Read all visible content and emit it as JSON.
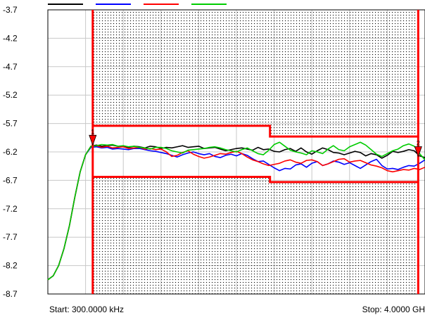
{
  "chart_data": {
    "type": "line",
    "title": "",
    "xlabel": "",
    "ylabel": "",
    "x_start_label": "Start: 300.0000 kHz",
    "x_stop_label": "Stop: 4.0000 GH",
    "ylim": [
      -8.7,
      -3.7
    ],
    "y_ticks": [
      "-3.7",
      "-4.2",
      "-4.7",
      "-5.2",
      "-5.7",
      "-6.2",
      "-6.7",
      "-7.2",
      "-7.7",
      "-8.2",
      "-8.7"
    ],
    "grid": true,
    "legend_position": "top-left",
    "series": [
      {
        "color": "#000000",
        "values": [
          -8.45,
          -8.38,
          -8.2,
          -7.9,
          -7.5,
          -7.0,
          -6.55,
          -6.25,
          -6.1,
          -6.08,
          -6.1,
          -6.09,
          -6.08,
          -6.1,
          -6.11,
          -6.12,
          -6.1,
          -6.11,
          -6.13,
          -6.1,
          -6.11,
          -6.14,
          -6.12,
          -6.13,
          -6.11,
          -6.09,
          -6.12,
          -6.11,
          -6.1,
          -6.14,
          -6.13,
          -6.12,
          -6.15,
          -6.18,
          -6.16,
          -6.14,
          -6.13,
          -6.15,
          -6.17,
          -6.12,
          -6.16,
          -6.15,
          -6.19,
          -6.2,
          -6.16,
          -6.14,
          -6.19,
          -6.13,
          -6.2,
          -6.24,
          -6.18,
          -6.13,
          -6.16,
          -6.21,
          -6.22,
          -6.25,
          -6.22,
          -6.19,
          -6.21,
          -6.27,
          -6.23,
          -6.25,
          -6.31,
          -6.26,
          -6.19,
          -6.21,
          -6.19,
          -6.16,
          -6.18,
          -6.27,
          -6.3
        ]
      },
      {
        "color": "#0000ff",
        "values": [
          -8.45,
          -8.38,
          -8.2,
          -7.9,
          -7.5,
          -7.0,
          -6.55,
          -6.25,
          -6.12,
          -6.11,
          -6.13,
          -6.12,
          -6.15,
          -6.14,
          -6.15,
          -6.16,
          -6.14,
          -6.14,
          -6.16,
          -6.18,
          -6.19,
          -6.21,
          -6.23,
          -6.26,
          -6.29,
          -6.25,
          -6.22,
          -6.2,
          -6.23,
          -6.25,
          -6.23,
          -6.28,
          -6.3,
          -6.26,
          -6.24,
          -6.27,
          -6.23,
          -6.26,
          -6.32,
          -6.37,
          -6.36,
          -6.42,
          -6.48,
          -6.53,
          -6.49,
          -6.5,
          -6.43,
          -6.41,
          -6.47,
          -6.4,
          -6.37,
          -6.44,
          -6.41,
          -6.36,
          -6.38,
          -6.42,
          -6.39,
          -6.44,
          -6.49,
          -6.43,
          -6.37,
          -6.33,
          -6.44,
          -6.5,
          -6.49,
          -6.51,
          -6.47,
          -6.44,
          -6.45,
          -6.4,
          -6.34
        ]
      },
      {
        "color": "#ff0000",
        "values": [
          -8.45,
          -8.38,
          -8.2,
          -7.9,
          -7.5,
          -7.0,
          -6.55,
          -6.25,
          -6.1,
          -6.09,
          -6.12,
          -6.1,
          -6.13,
          -6.12,
          -6.11,
          -6.14,
          -6.13,
          -6.12,
          -6.15,
          -6.14,
          -6.16,
          -6.15,
          -6.2,
          -6.28,
          -6.26,
          -6.21,
          -6.18,
          -6.24,
          -6.28,
          -6.31,
          -6.29,
          -6.26,
          -6.23,
          -6.24,
          -6.21,
          -6.19,
          -6.23,
          -6.29,
          -6.34,
          -6.37,
          -6.41,
          -6.44,
          -6.42,
          -6.4,
          -6.36,
          -6.34,
          -6.38,
          -6.4,
          -6.35,
          -6.34,
          -6.37,
          -6.44,
          -6.41,
          -6.37,
          -6.33,
          -6.32,
          -6.38,
          -6.36,
          -6.35,
          -6.39,
          -6.43,
          -6.45,
          -6.48,
          -6.53,
          -6.55,
          -6.53,
          -6.51,
          -6.52,
          -6.49,
          -6.51,
          -6.47
        ]
      },
      {
        "color": "#00cc00",
        "values": [
          -8.45,
          -8.38,
          -8.2,
          -7.9,
          -7.5,
          -7.0,
          -6.55,
          -6.25,
          -6.1,
          -6.09,
          -6.07,
          -6.08,
          -6.07,
          -6.1,
          -6.09,
          -6.11,
          -6.1,
          -6.12,
          -6.13,
          -6.15,
          -6.12,
          -6.12,
          -6.14,
          -6.18,
          -6.2,
          -6.22,
          -6.17,
          -6.16,
          -6.15,
          -6.14,
          -6.12,
          -6.11,
          -6.13,
          -6.16,
          -6.18,
          -6.2,
          -6.16,
          -6.13,
          -6.18,
          -6.23,
          -6.25,
          -6.17,
          -6.07,
          -6.03,
          -6.1,
          -6.17,
          -6.2,
          -6.22,
          -6.25,
          -6.18,
          -6.2,
          -6.23,
          -6.15,
          -6.09,
          -6.16,
          -6.18,
          -6.11,
          -6.07,
          -6.03,
          -6.08,
          -6.16,
          -6.24,
          -6.28,
          -6.23,
          -6.18,
          -6.15,
          -6.09,
          -6.06,
          -6.1,
          -6.23,
          -6.34
        ]
      }
    ],
    "limit_lines": {
      "color": "#ff0000",
      "upper": [
        {
          "from": 0.119,
          "to": 0.589,
          "value": -5.74
        },
        {
          "from": 0.589,
          "to": 0.982,
          "value": -5.93
        }
      ],
      "lower": [
        {
          "from": 0.119,
          "to": 0.589,
          "value": -6.64
        },
        {
          "from": 0.589,
          "to": 0.982,
          "value": -6.73
        }
      ],
      "left_edge": 0.119,
      "right_edge": 0.982
    },
    "markers": [
      {
        "label": "1",
        "color": "#ff0000",
        "position": 0.119,
        "value": -6.08
      },
      {
        "label": "2",
        "color": "#ff0000",
        "position": 0.982,
        "value": -6.28
      }
    ]
  }
}
